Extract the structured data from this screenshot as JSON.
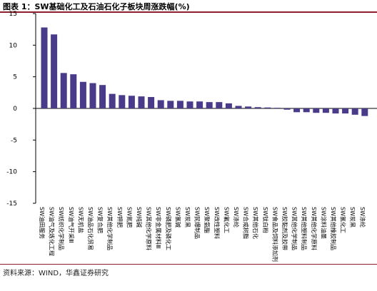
{
  "header": {
    "title": "图表 1：SW基础化工及石油石化子板块周涨跌幅(%)"
  },
  "footer": {
    "source": "资料来源：WIND，华鑫证券研究"
  },
  "colors": {
    "bar": "#4a3a8a",
    "rule": "#8e1f2c",
    "axis": "#000000"
  },
  "chart_data": {
    "type": "bar",
    "title": "图表 1：SW基础化工及石油石化子板块周涨跌幅(%)",
    "xlabel": "",
    "ylabel": "",
    "ylim": [
      -15,
      15
    ],
    "yticks": [
      15,
      10,
      5,
      0,
      -5,
      -10,
      -15
    ],
    "grid": false,
    "categories": [
      "SW油田服务",
      "SW油气及炼化工程",
      "SW纺织化学制品",
      "SW油气开采Ⅲ",
      "SW无机盐",
      "SW油品石化贸易",
      "SW复合肥",
      "SW其他化学制品",
      "SW钾肥",
      "SW氮肥",
      "SW纯碱",
      "SW其他化学原料",
      "SW非金属材料Ⅲ",
      "SW磷肥及磷化工",
      "SW氯碱",
      "SW炭黑",
      "SW民爆制品",
      "SW聚氨酯",
      "SW改性塑料",
      "SW氟化工",
      "SW涤纶",
      "SW合成树脂",
      "SW其他石化",
      "SW钛白粉",
      "SW食品及饲料添加剂",
      "SW胶黏剂及胶带",
      "SW其他化学制品",
      "SW其他塑料制品",
      "SW其他化学原料",
      "SW涂料油墨",
      "SW其他橡胶制品",
      "SW氯化工",
      "SW炭黑",
      "SW涤纶"
    ],
    "values": [
      12.8,
      11.7,
      5.6,
      5.4,
      4.2,
      4.0,
      3.7,
      2.3,
      2.1,
      2.0,
      1.9,
      1.8,
      1.3,
      1.2,
      1.2,
      1.1,
      1.1,
      1.0,
      1.0,
      0.8,
      0.4,
      0.3,
      0.2,
      0.15,
      0.1,
      -0.2,
      -0.6,
      -0.6,
      -0.7,
      -0.7,
      -0.8,
      -0.8,
      -1.0,
      -1.2
    ]
  }
}
